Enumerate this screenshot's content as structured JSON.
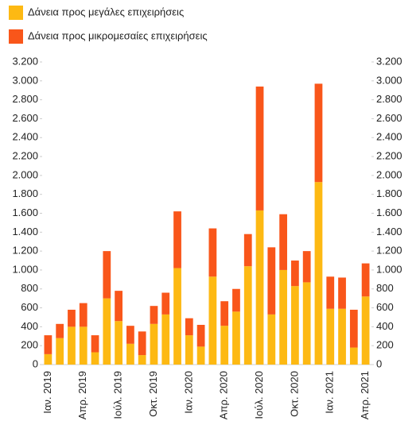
{
  "chart_data": {
    "type": "stacked_bar",
    "categories": [
      "Ιαν. 2019",
      null,
      null,
      "Απρ. 2019",
      null,
      null,
      "Ιούλ. 2019",
      null,
      null,
      "Οκτ. 2019",
      null,
      null,
      "Ιαν. 2020",
      null,
      null,
      "Απρ. 2020",
      null,
      null,
      "Ιούλ. 2020",
      null,
      null,
      "Οκτ. 2020",
      null,
      null,
      "Ιαν. 2021",
      null,
      null,
      "Απρ. 2021"
    ],
    "series": [
      {
        "name": "Δάνεια προς μεγάλες επιχειρήσεις",
        "color": "#fdb913",
        "values": [
          110,
          280,
          400,
          400,
          130,
          700,
          460,
          220,
          100,
          430,
          530,
          1020,
          310,
          190,
          930,
          410,
          560,
          1040,
          1630,
          530,
          1000,
          830,
          870,
          1930,
          590,
          590,
          180,
          720
        ]
      },
      {
        "name": "Δάνεια προς μικρομεσαίες επιχειρήσεις",
        "color": "#f9561a",
        "values": [
          200,
          150,
          180,
          250,
          180,
          500,
          320,
          190,
          250,
          190,
          230,
          600,
          180,
          230,
          510,
          260,
          240,
          340,
          1310,
          710,
          590,
          270,
          330,
          1040,
          340,
          330,
          400,
          350
        ]
      }
    ],
    "ylim": [
      0,
      3200
    ],
    "yticks": [
      0,
      200,
      400,
      600,
      800,
      {
        "value": 1000,
        "label": "1.000"
      },
      {
        "value": 1200,
        "label": "1.200"
      },
      {
        "value": 1400,
        "label": "1.400"
      },
      {
        "value": 1600,
        "label": "1.600"
      },
      {
        "value": 1800,
        "label": "1.800"
      },
      {
        "value": 2000,
        "label": "2.000"
      },
      {
        "value": 2200,
        "label": "2.200"
      },
      {
        "value": 2400,
        "label": "2.400"
      },
      {
        "value": 2600,
        "label": "2.600"
      },
      {
        "value": 2800,
        "label": "2.800"
      },
      {
        "value": 3000,
        "label": "3.000"
      },
      {
        "value": 3200,
        "label": "3.200"
      }
    ],
    "y2lim": [
      0,
      3200
    ],
    "y2ticks": [
      0,
      200,
      400,
      600,
      800,
      {
        "value": 1000,
        "label": "1.000"
      },
      {
        "value": 1200,
        "label": "1.200"
      },
      {
        "value": 1400,
        "label": "1.400"
      },
      {
        "value": 1600,
        "label": "1.600"
      },
      {
        "value": 1800,
        "label": "1.800"
      },
      {
        "value": 2000,
        "label": "2.000"
      },
      {
        "value": 2200,
        "label": "2.200"
      },
      {
        "value": 2400,
        "label": "2.400"
      },
      {
        "value": 2600,
        "label": "2.600"
      },
      {
        "value": 2800,
        "label": "2.800"
      },
      {
        "value": 3000,
        "label": "3.000"
      },
      {
        "value": 3200,
        "label": "3.200"
      }
    ],
    "grid": false
  }
}
